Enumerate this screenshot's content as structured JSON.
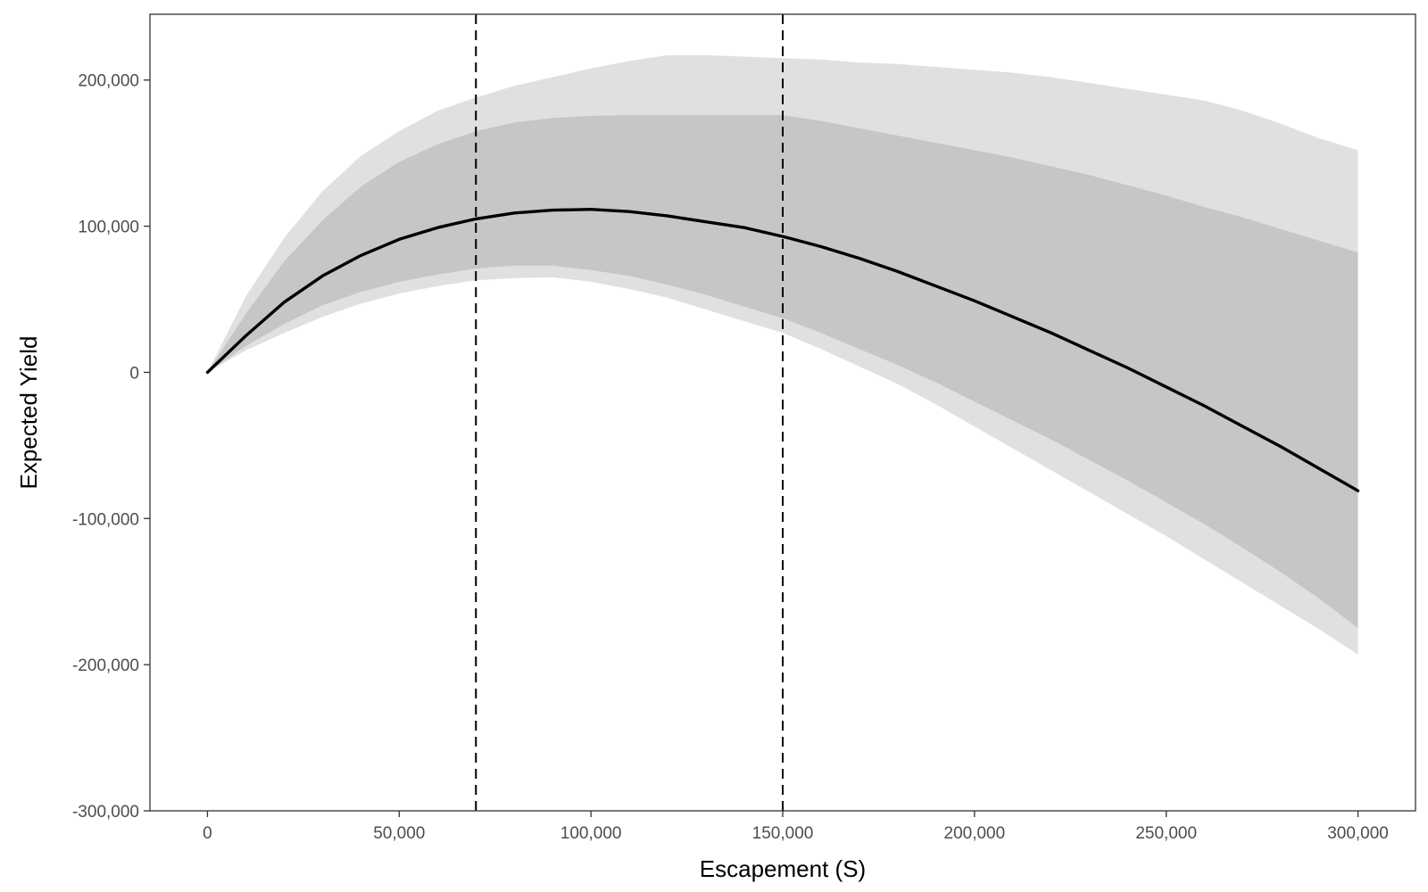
{
  "chart_data": {
    "type": "line",
    "title": "",
    "xlabel": "Escapement (S)",
    "ylabel": "Expected Yield",
    "xlim": [
      -15000,
      315000
    ],
    "ylim": [
      -300000,
      245000
    ],
    "x_ticks": [
      0,
      50000,
      100000,
      150000,
      200000,
      250000,
      300000
    ],
    "x_tick_labels": [
      "0",
      "50,000",
      "100,000",
      "150,000",
      "200,000",
      "250,000",
      "300,000"
    ],
    "y_ticks": [
      -300000,
      -200000,
      -100000,
      0,
      100000,
      200000
    ],
    "y_tick_labels": [
      "-300,000",
      "-200,000",
      "-100,000",
      "0",
      "100,000",
      "200,000"
    ],
    "grid": false,
    "legend": "none",
    "reference_lines": [
      {
        "orientation": "vertical",
        "x": 70000,
        "style": "dashed"
      },
      {
        "orientation": "vertical",
        "x": 150000,
        "style": "dashed"
      }
    ],
    "colors": {
      "outer_band": "#e0e0e0",
      "inner_band": "#c6c6c6",
      "line": "#000000"
    },
    "x": [
      0,
      10000,
      20000,
      30000,
      40000,
      50000,
      60000,
      70000,
      80000,
      90000,
      100000,
      110000,
      120000,
      130000,
      140000,
      150000,
      160000,
      170000,
      180000,
      190000,
      200000,
      210000,
      220000,
      230000,
      240000,
      250000,
      260000,
      270000,
      280000,
      290000,
      300000
    ],
    "series": [
      {
        "values": [
          0,
          25000,
          48000,
          66000,
          80000,
          91000,
          99000,
          105000,
          109000,
          111000,
          111500,
          110000,
          107000,
          103000,
          99000,
          93000,
          86000,
          78000,
          69000,
          59000,
          49000,
          38000,
          27000,
          15000,
          3000,
          -10000,
          -23000,
          -37000,
          -51000,
          -66000,
          -81000
        ]
      }
    ],
    "bands": [
      {
        "level": "outer",
        "lower": [
          0,
          15000,
          27000,
          38000,
          47000,
          54000,
          59000,
          63000,
          64500,
          65000,
          62000,
          57000,
          51000,
          43000,
          35000,
          27000,
          16000,
          4000,
          -8000,
          -22000,
          -37000,
          -52000,
          -67000,
          -82000,
          -97000,
          -112000,
          -128000,
          -144000,
          -160000,
          -176000,
          -193000
        ],
        "upper": [
          0,
          52000,
          92000,
          124000,
          148000,
          165000,
          179000,
          188000,
          196000,
          202000,
          208000,
          213000,
          217000,
          217000,
          216000,
          215000,
          214000,
          212000,
          211000,
          209000,
          207000,
          205000,
          202000,
          198000,
          194000,
          190000,
          186000,
          179000,
          170000,
          160000,
          152000
        ]
      },
      {
        "level": "inner",
        "lower": [
          0,
          18000,
          33000,
          46000,
          55000,
          62000,
          67000,
          71000,
          73000,
          73000,
          70000,
          66000,
          60000,
          53000,
          45000,
          37000,
          27000,
          16000,
          5000,
          -7000,
          -20000,
          -33000,
          -46000,
          -60000,
          -74000,
          -89000,
          -104000,
          -120000,
          -137000,
          -155000,
          -175000
        ],
        "upper": [
          0,
          40000,
          76000,
          104000,
          127000,
          144000,
          156000,
          165000,
          171000,
          174000,
          175500,
          176000,
          176000,
          176000,
          176000,
          176000,
          172000,
          167000,
          162000,
          157000,
          152000,
          147000,
          141000,
          135000,
          128000,
          121000,
          113000,
          106000,
          98000,
          90000,
          82000
        ]
      }
    ]
  }
}
